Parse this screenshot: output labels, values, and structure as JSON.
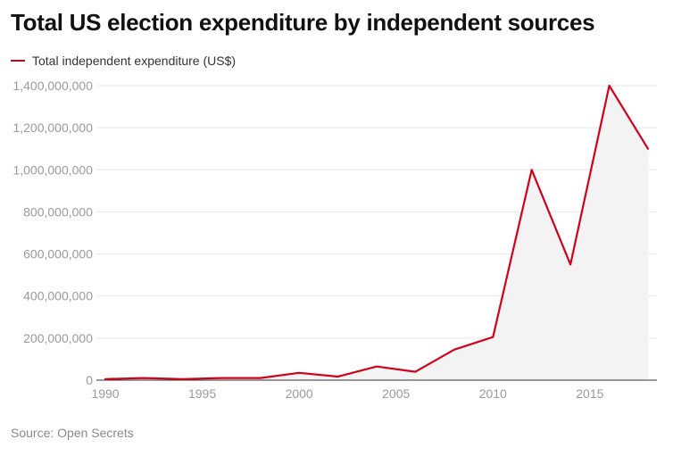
{
  "chart_data": {
    "type": "area",
    "title": "Total US election expenditure by independent sources",
    "legend": {
      "position": "top-left",
      "entries": [
        "Total independent expenditure (US$)"
      ]
    },
    "source": "Source: Open Secrets",
    "xlim": [
      1990,
      2018
    ],
    "ylim": [
      0,
      1400000000
    ],
    "x_ticks": [
      1990,
      1995,
      2000,
      2005,
      2010,
      2015
    ],
    "x_tick_labels": [
      "1990",
      "1995",
      "2000",
      "2005",
      "2010",
      "2015"
    ],
    "y_ticks": [
      0,
      200000000,
      400000000,
      600000000,
      800000000,
      1000000000,
      1200000000,
      1400000000
    ],
    "y_tick_labels": [
      "0",
      "200,000,000",
      "400,000,000",
      "600,000,000",
      "800,000,000",
      "1,000,000,000",
      "1,200,000,000",
      "1,400,000,000"
    ],
    "grid": true,
    "series": [
      {
        "name": "Total independent expenditure (US$)",
        "color": "#d0021b",
        "fill": "#f3f3f3",
        "x": [
          1990,
          1992,
          1994,
          1996,
          1998,
          2000,
          2002,
          2004,
          2006,
          2008,
          2010,
          2012,
          2014,
          2016,
          2018
        ],
        "y": [
          5000000,
          10000000,
          5000000,
          10000000,
          10000000,
          35000000,
          17000000,
          65000000,
          40000000,
          145000000,
          205000000,
          1000000000,
          550000000,
          1400000000,
          1100000000
        ]
      }
    ]
  }
}
